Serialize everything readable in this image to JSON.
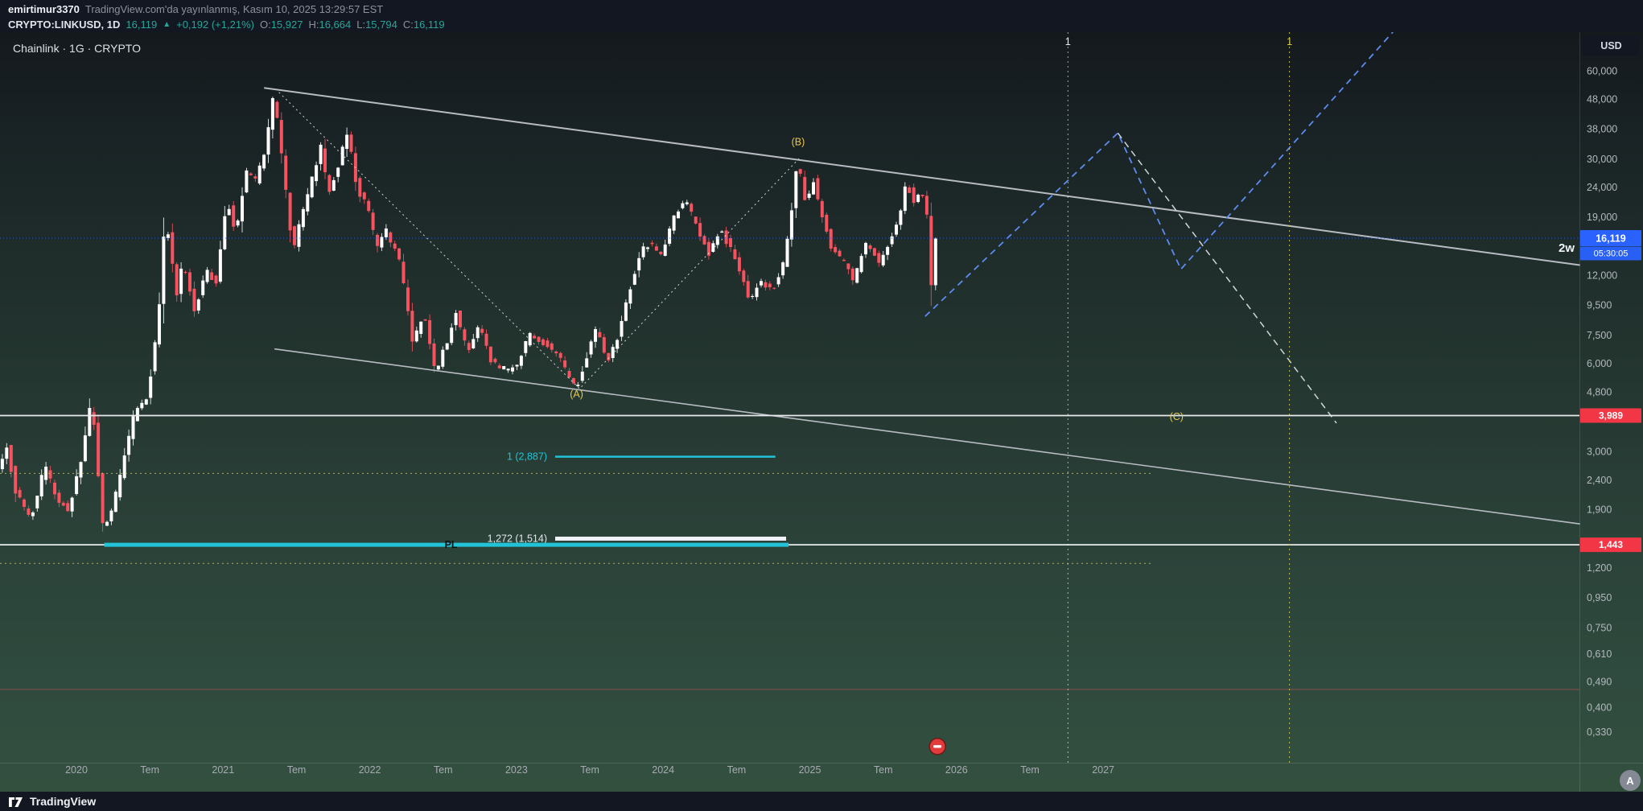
{
  "header": {
    "author": "emirtimur3370",
    "published": "TradingView.com'da yayınlanmış, Kasım 10, 2025 13:29:57 EST",
    "symbol_interval": "CRYPTO:LINKUSD, 1D",
    "last_price": "16,119",
    "arrow": "▲",
    "change": "+0,192 (+1,21%)",
    "ohlc": [
      {
        "label": "O:",
        "value": "15,927"
      },
      {
        "label": "H:",
        "value": "16,664"
      },
      {
        "label": "L:",
        "value": "15,794"
      },
      {
        "label": "C:",
        "value": "16,119"
      }
    ]
  },
  "legend": {
    "title": "Chainlink · 1G · CRYPTO"
  },
  "axis": {
    "currency": "USD",
    "price_labels": [
      {
        "text": "60,000",
        "p": 60
      },
      {
        "text": "48,000",
        "p": 48
      },
      {
        "text": "38,000",
        "p": 38
      },
      {
        "text": "30,000",
        "p": 30
      },
      {
        "text": "24,000",
        "p": 24
      },
      {
        "text": "19,000",
        "p": 19
      },
      {
        "text": "12,000",
        "p": 12
      },
      {
        "text": "9,500",
        "p": 9.5
      },
      {
        "text": "7,500",
        "p": 7.5
      },
      {
        "text": "6,000",
        "p": 6
      },
      {
        "text": "4,800",
        "p": 4.8
      },
      {
        "text": "3,000",
        "p": 3
      },
      {
        "text": "2,400",
        "p": 2.4
      },
      {
        "text": "1,900",
        "p": 1.9
      },
      {
        "text": "1,200",
        "p": 1.2
      },
      {
        "text": "0,950",
        "p": 0.95
      },
      {
        "text": "0,750",
        "p": 0.75
      },
      {
        "text": "0,610",
        "p": 0.61
      },
      {
        "text": "0,490",
        "p": 0.49
      },
      {
        "text": "0,400",
        "p": 0.4
      },
      {
        "text": "0,330",
        "p": 0.33
      }
    ],
    "time_labels": [
      {
        "text": "2020",
        "t": 2020
      },
      {
        "text": "Tem",
        "t": 2020.5
      },
      {
        "text": "2021",
        "t": 2021
      },
      {
        "text": "Tem",
        "t": 2021.5
      },
      {
        "text": "2022",
        "t": 2022
      },
      {
        "text": "Tem",
        "t": 2022.5
      },
      {
        "text": "2023",
        "t": 2023
      },
      {
        "text": "Tem",
        "t": 2023.5
      },
      {
        "text": "2024",
        "t": 2024
      },
      {
        "text": "Tem",
        "t": 2024.5
      },
      {
        "text": "2025",
        "t": 2025
      },
      {
        "text": "Tem",
        "t": 2025.5
      },
      {
        "text": "2026",
        "t": 2026
      },
      {
        "text": "Tem",
        "t": 2026.5
      },
      {
        "text": "2027",
        "t": 2027
      }
    ],
    "avatar_letter": "A"
  },
  "footer": {
    "logo_text": "TradingView"
  },
  "colors": {
    "up": "#ffffff",
    "down": "#f7525f",
    "accent_blue": "#2962ff",
    "alert_red": "#f23645",
    "cyan": "#22c3d6",
    "yellow": "#eac94a",
    "trend": "#b8bcc2",
    "projection_blue": "#5d8bf0",
    "green": "#26a69a"
  },
  "chart_data": {
    "type": "candlestick",
    "symbol": "CRYPTO:LINKUSD",
    "interval": "1D",
    "scale": "log",
    "title": "Chainlink · 1G · CRYPTO",
    "last": 16.119,
    "open": 15.927,
    "high": 16.664,
    "low": 15.794,
    "close": 16.119,
    "x_range": [
      2019.48,
      2025.872
    ],
    "visible_time_axis": [
      2019.48,
      2030.25
    ],
    "visible_price_axis": [
      0.29,
      70
    ],
    "price_path": [
      [
        2019.48,
        2.6
      ],
      [
        2019.54,
        3.1
      ],
      [
        2019.6,
        2.2
      ],
      [
        2019.7,
        1.75
      ],
      [
        2019.8,
        2.7
      ],
      [
        2019.88,
        2.1
      ],
      [
        2019.96,
        1.9
      ],
      [
        2020.05,
        2.9
      ],
      [
        2020.12,
        4.6
      ],
      [
        2020.2,
        1.55
      ],
      [
        2020.3,
        2.3
      ],
      [
        2020.4,
        3.9
      ],
      [
        2020.5,
        4.7
      ],
      [
        2020.57,
        8.2
      ],
      [
        2020.62,
        19.5
      ],
      [
        2020.7,
        10.2
      ],
      [
        2020.74,
        13.5
      ],
      [
        2020.82,
        9.0
      ],
      [
        2020.9,
        12.5
      ],
      [
        2020.97,
        11.2
      ],
      [
        2021.04,
        22.5
      ],
      [
        2021.1,
        16.5
      ],
      [
        2021.17,
        27.5
      ],
      [
        2021.23,
        25.0
      ],
      [
        2021.3,
        32.0
      ],
      [
        2021.36,
        51.0
      ],
      [
        2021.42,
        29.0
      ],
      [
        2021.49,
        14.5
      ],
      [
        2021.55,
        19.5
      ],
      [
        2021.62,
        25.5
      ],
      [
        2021.68,
        33.0
      ],
      [
        2021.73,
        23.0
      ],
      [
        2021.79,
        27.0
      ],
      [
        2021.86,
        37.5
      ],
      [
        2021.93,
        23.5
      ],
      [
        2022.0,
        20.5
      ],
      [
        2022.06,
        14.8
      ],
      [
        2022.12,
        17.5
      ],
      [
        2022.22,
        13.2
      ],
      [
        2022.31,
        7.0
      ],
      [
        2022.38,
        9.0
      ],
      [
        2022.46,
        5.6
      ],
      [
        2022.55,
        7.4
      ],
      [
        2022.6,
        9.2
      ],
      [
        2022.68,
        6.5
      ],
      [
        2022.76,
        8.0
      ],
      [
        2022.85,
        6.0
      ],
      [
        2022.95,
        5.7
      ],
      [
        2023.03,
        6.1
      ],
      [
        2023.1,
        7.6
      ],
      [
        2023.2,
        7.1
      ],
      [
        2023.3,
        6.4
      ],
      [
        2023.42,
        4.95
      ],
      [
        2023.5,
        6.5
      ],
      [
        2023.56,
        8.0
      ],
      [
        2023.63,
        6.0
      ],
      [
        2023.71,
        7.5
      ],
      [
        2023.79,
        11.0
      ],
      [
        2023.86,
        14.5
      ],
      [
        2023.93,
        15.5
      ],
      [
        2024.0,
        14.0
      ],
      [
        2024.08,
        18.5
      ],
      [
        2024.16,
        22.0
      ],
      [
        2024.24,
        18.0
      ],
      [
        2024.33,
        14.0
      ],
      [
        2024.4,
        17.5
      ],
      [
        2024.48,
        14.5
      ],
      [
        2024.55,
        12.0
      ],
      [
        2024.6,
        9.8
      ],
      [
        2024.68,
        11.5
      ],
      [
        2024.76,
        10.8
      ],
      [
        2024.83,
        13.0
      ],
      [
        2024.89,
        20.0
      ],
      [
        2024.93,
        30.0
      ],
      [
        2024.99,
        21.0
      ],
      [
        2025.04,
        25.5
      ],
      [
        2025.1,
        19.0
      ],
      [
        2025.16,
        15.0
      ],
      [
        2025.24,
        13.5
      ],
      [
        2025.31,
        11.5
      ],
      [
        2025.4,
        15.5
      ],
      [
        2025.49,
        13.2
      ],
      [
        2025.56,
        16.0
      ],
      [
        2025.63,
        19.5
      ],
      [
        2025.67,
        25.5
      ],
      [
        2025.72,
        21.5
      ],
      [
        2025.77,
        24.0
      ],
      [
        2025.82,
        19.0
      ],
      [
        2025.838,
        10.0
      ],
      [
        2025.856,
        14.5
      ],
      [
        2025.872,
        16.12
      ]
    ],
    "overlays": {
      "trend_lines": [
        {
          "points": [
            [
              2021.279,
              52.6
            ],
            [
              2030.25,
              13.04
            ]
          ],
          "width": 2
        },
        {
          "points": [
            [
              2021.35,
              6.74
            ],
            [
              2030.25,
              1.7
            ]
          ],
          "width": 1.6
        }
      ],
      "abc_path": [
        [
          2021.357,
          52.2
        ],
        [
          2023.43,
          4.93
        ],
        [
          2024.936,
          30.5
        ]
      ],
      "blue_projection": [
        [
          2025.786,
          8.71
        ],
        [
          2027.1,
          36.9
        ],
        [
          2027.53,
          12.63
        ],
        [
          2029.05,
          90.0
        ]
      ],
      "white_projection": [
        [
          2027.1,
          36.9
        ],
        [
          2028.59,
          3.76
        ]
      ],
      "hlines": [
        {
          "p": 3.989,
          "label": "3,989"
        },
        {
          "p": 1.443,
          "label": "1,443"
        }
      ],
      "current_price": {
        "p": 16.119,
        "label": "16,119",
        "countdown": "05:30:05"
      },
      "yellow_dotted": [
        {
          "p": 2.53,
          "t2": 2027.34
        },
        {
          "p": 1.246,
          "t2": 2027.34
        }
      ],
      "faint_red_hline": {
        "p": 0.462
      },
      "fib_levels": [
        {
          "label": "1 (2,887)",
          "p": 2.887,
          "t1": 2023.264,
          "t2": 2024.765,
          "color": "cyan",
          "width": 2.5
        },
        {
          "label": "1,272 (1,514)",
          "p": 1.514,
          "t1": 2023.264,
          "t2": 2024.838,
          "color": "white",
          "width": 5
        }
      ],
      "pl_line": {
        "p": 1.443,
        "t1": 2020.19,
        "t2": 2024.855,
        "label": "PL",
        "label_t": 2022.51
      },
      "vlines": [
        {
          "t": 2026.76,
          "label": "1",
          "color": "white"
        },
        {
          "t": 2028.27,
          "label": "1",
          "color": "yellow"
        }
      ],
      "wave_labels": [
        {
          "text": "(A)",
          "t": 2023.41,
          "p": 4.6
        },
        {
          "text": "(B)",
          "t": 2024.92,
          "p": 33.5
        },
        {
          "text": "(C)",
          "t": 2027.5,
          "p": 3.85
        }
      ],
      "note_2w": {
        "text": "2w",
        "p": 14.5
      },
      "event_marker": {
        "t": 2025.87,
        "p": 0.295
      }
    }
  }
}
